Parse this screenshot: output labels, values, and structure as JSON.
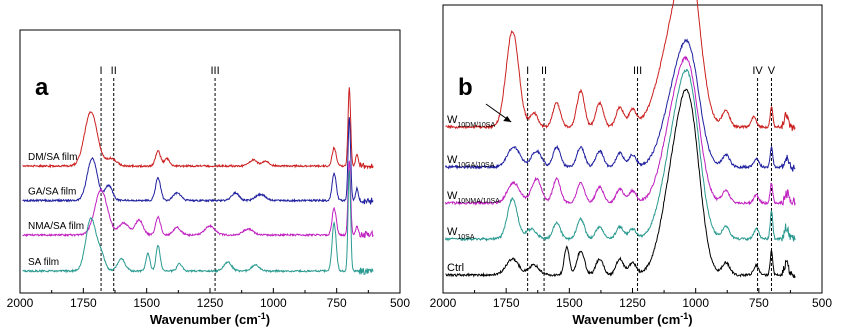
{
  "chart_data": [
    {
      "type": "line",
      "panel": "a",
      "xlabel": "Wavenumber (cm",
      "xlabel_sup": "-1",
      "xlabel_close": ")",
      "xlim": [
        2000,
        500
      ],
      "x_reversed": true,
      "xticks": [
        2000,
        1750,
        1500,
        1250,
        1000,
        750,
        500
      ],
      "band_markers": [
        {
          "label": "I",
          "x": 1680
        },
        {
          "label": "II",
          "x": 1630
        },
        {
          "label": "III",
          "x": 1230
        }
      ],
      "series": [
        {
          "name": "DM/SA film",
          "color": "#cc2020",
          "baseline": 0.78,
          "peaks": [
            [
              1720,
              0.36,
              25
            ],
            [
              1640,
              0.05,
              20
            ],
            [
              1455,
              0.1,
              10
            ],
            [
              1420,
              0.05,
              10
            ],
            [
              1080,
              0.04,
              15
            ],
            [
              1030,
              0.03,
              15
            ],
            [
              760,
              0.12,
              8
            ],
            [
              700,
              0.52,
              5
            ],
            [
              670,
              0.08,
              5
            ]
          ]
        },
        {
          "name": "GA/SA film",
          "color": "#2020a0",
          "baseline": 0.55,
          "peaks": [
            [
              1715,
              0.28,
              20
            ],
            [
              1650,
              0.1,
              15
            ],
            [
              1455,
              0.15,
              10
            ],
            [
              1380,
              0.05,
              15
            ],
            [
              1150,
              0.05,
              15
            ],
            [
              1050,
              0.04,
              20
            ],
            [
              760,
              0.18,
              8
            ],
            [
              700,
              0.55,
              5
            ],
            [
              670,
              0.08,
              5
            ]
          ]
        },
        {
          "name": "NMA/SA film",
          "color": "#c020c0",
          "baseline": 0.32,
          "peaks": [
            [
              1680,
              0.3,
              25
            ],
            [
              1590,
              0.08,
              20
            ],
            [
              1530,
              0.1,
              15
            ],
            [
              1455,
              0.12,
              10
            ],
            [
              1380,
              0.05,
              15
            ],
            [
              1250,
              0.06,
              20
            ],
            [
              1100,
              0.04,
              20
            ],
            [
              760,
              0.18,
              8
            ],
            [
              700,
              0.5,
              5
            ],
            [
              670,
              0.06,
              5
            ]
          ]
        },
        {
          "name": "SA film",
          "color": "#2a9a90",
          "baseline": 0.08,
          "peaks": [
            [
              1720,
              0.35,
              20
            ],
            [
              1680,
              0.1,
              15
            ],
            [
              1600,
              0.08,
              15
            ],
            [
              1495,
              0.12,
              8
            ],
            [
              1455,
              0.17,
              8
            ],
            [
              1370,
              0.05,
              10
            ],
            [
              1180,
              0.06,
              15
            ],
            [
              1070,
              0.04,
              15
            ],
            [
              760,
              0.32,
              8
            ],
            [
              700,
              0.68,
              5
            ]
          ]
        }
      ]
    },
    {
      "type": "line",
      "panel": "b",
      "xlabel": "Wavenumber (cm",
      "xlabel_sup": "-1",
      "xlabel_close": ")",
      "xlim": [
        2000,
        500
      ],
      "x_reversed": true,
      "xticks": [
        2000,
        1750,
        1500,
        1250,
        1000,
        750,
        500
      ],
      "band_markers": [
        {
          "label": "I",
          "x": 1665
        },
        {
          "label": "II",
          "x": 1600
        },
        {
          "label": "III",
          "x": 1230
        },
        {
          "label": "IV",
          "x": 755
        },
        {
          "label": "V",
          "x": 700
        }
      ],
      "series": [
        {
          "label_main": "W",
          "label_sub": "10DM/10SA",
          "color": "#cc2020",
          "baseline": 0.78,
          "peaks": [
            [
              1725,
              0.48,
              25
            ],
            [
              1640,
              0.07,
              15
            ],
            [
              1550,
              0.12,
              15
            ],
            [
              1455,
              0.18,
              15
            ],
            [
              1380,
              0.12,
              15
            ],
            [
              1300,
              0.1,
              15
            ],
            [
              1250,
              0.08,
              15
            ],
            [
              1080,
              0.5,
              60
            ],
            [
              1020,
              0.55,
              40
            ],
            [
              880,
              0.08,
              15
            ],
            [
              770,
              0.05,
              10
            ],
            [
              700,
              0.1,
              5
            ],
            [
              640,
              0.06,
              8
            ]
          ]
        },
        {
          "label_main": "W",
          "label_sub": "10GA/10SA",
          "color": "#2020a0",
          "baseline": 0.58,
          "peaks": [
            [
              1720,
              0.1,
              25
            ],
            [
              1630,
              0.08,
              20
            ],
            [
              1550,
              0.1,
              15
            ],
            [
              1455,
              0.1,
              15
            ],
            [
              1380,
              0.08,
              15
            ],
            [
              1300,
              0.07,
              15
            ],
            [
              1250,
              0.06,
              15
            ],
            [
              1080,
              0.36,
              50
            ],
            [
              1020,
              0.42,
              40
            ],
            [
              880,
              0.06,
              15
            ],
            [
              760,
              0.04,
              10
            ],
            [
              700,
              0.1,
              5
            ],
            [
              640,
              0.05,
              8
            ]
          ]
        },
        {
          "label_main": "W",
          "label_sub": "10NMA/10SA",
          "color": "#c020c0",
          "baseline": 0.4,
          "peaks": [
            [
              1720,
              0.1,
              25
            ],
            [
              1630,
              0.12,
              20
            ],
            [
              1550,
              0.12,
              15
            ],
            [
              1455,
              0.1,
              15
            ],
            [
              1380,
              0.08,
              15
            ],
            [
              1300,
              0.07,
              15
            ],
            [
              1250,
              0.06,
              15
            ],
            [
              1080,
              0.44,
              50
            ],
            [
              1020,
              0.46,
              40
            ],
            [
              880,
              0.06,
              15
            ],
            [
              760,
              0.04,
              10
            ],
            [
              700,
              0.1,
              5
            ],
            [
              640,
              0.05,
              8
            ]
          ]
        },
        {
          "label_main": "W",
          "label_sub": "10SA",
          "color": "#2a9a90",
          "baseline": 0.22,
          "peaks": [
            [
              1725,
              0.2,
              20
            ],
            [
              1650,
              0.05,
              20
            ],
            [
              1550,
              0.08,
              15
            ],
            [
              1455,
              0.1,
              15
            ],
            [
              1380,
              0.06,
              15
            ],
            [
              1300,
              0.06,
              15
            ],
            [
              1250,
              0.05,
              15
            ],
            [
              1080,
              0.48,
              50
            ],
            [
              1020,
              0.56,
              40
            ],
            [
              880,
              0.06,
              15
            ],
            [
              760,
              0.05,
              10
            ],
            [
              700,
              0.14,
              5
            ],
            [
              640,
              0.06,
              8
            ]
          ]
        },
        {
          "label_main": "Ctrl",
          "label_sub": "",
          "color": "#000000",
          "baseline": 0.04,
          "peaks": [
            [
              1725,
              0.08,
              25
            ],
            [
              1640,
              0.05,
              20
            ],
            [
              1510,
              0.14,
              10
            ],
            [
              1455,
              0.12,
              15
            ],
            [
              1380,
              0.08,
              15
            ],
            [
              1300,
              0.08,
              15
            ],
            [
              1250,
              0.06,
              15
            ],
            [
              1080,
              0.52,
              50
            ],
            [
              1020,
              0.62,
              40
            ],
            [
              880,
              0.06,
              15
            ],
            [
              760,
              0.05,
              10
            ],
            [
              700,
              0.12,
              5
            ],
            [
              640,
              0.06,
              8
            ]
          ]
        }
      ]
    }
  ]
}
